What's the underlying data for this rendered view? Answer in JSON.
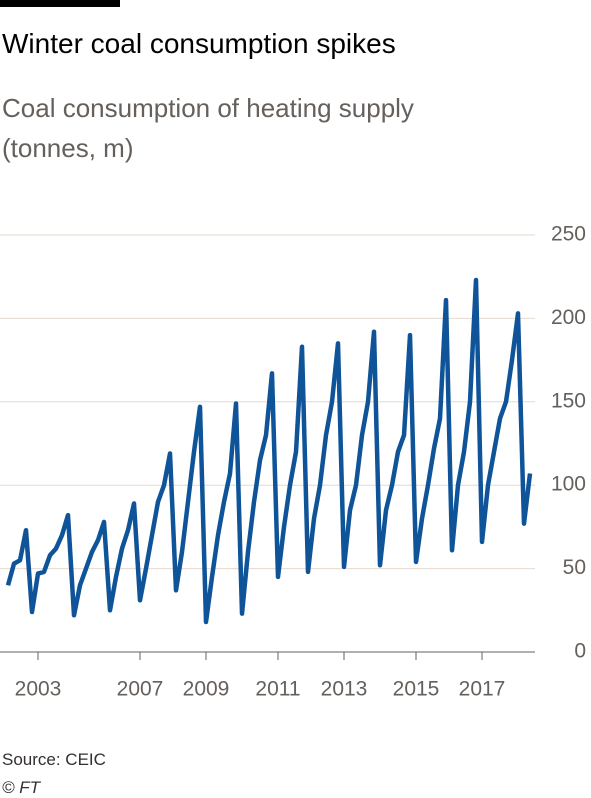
{
  "chart_data": {
    "type": "line",
    "title": "Winter coal consumption spikes",
    "subtitle": "Coal consumption of heating supply (tonnes, m)",
    "source": "Source: CEIC",
    "credit": "© FT",
    "categories": [
      null,
      null,
      null,
      null,
      null,
      "2003",
      null,
      null,
      null,
      null,
      null,
      null,
      null,
      null,
      null,
      null,
      null,
      null,
      null,
      null,
      null,
      null,
      "2007",
      null,
      null,
      null,
      null,
      null,
      null,
      null,
      null,
      null,
      null,
      "2009",
      null,
      null,
      null,
      null,
      null,
      null,
      null,
      null,
      null,
      null,
      null,
      "2011",
      null,
      null,
      null,
      null,
      null,
      null,
      null,
      null,
      null,
      null,
      "2013",
      null,
      null,
      null,
      null,
      null,
      null,
      null,
      null,
      null,
      null,
      null,
      "2015",
      null,
      null,
      null,
      null,
      null,
      null,
      null,
      null,
      null,
      null,
      "2017",
      null,
      null,
      null,
      null,
      null,
      null,
      null,
      null
    ],
    "values": [
      40,
      53,
      55,
      73,
      24,
      47,
      48,
      58,
      62,
      70,
      82,
      22,
      40,
      50,
      60,
      67,
      78,
      25,
      45,
      62,
      73,
      89,
      31,
      50,
      70,
      90,
      100,
      119,
      37,
      60,
      90,
      120,
      147,
      18,
      45,
      70,
      90,
      107,
      149,
      23,
      60,
      90,
      115,
      130,
      167,
      45,
      75,
      100,
      120,
      183,
      48,
      80,
      100,
      130,
      150,
      185,
      51,
      85,
      100,
      130,
      150,
      192,
      52,
      85,
      100,
      120,
      130,
      190,
      54,
      80,
      100,
      122,
      140,
      211,
      61,
      100,
      120,
      150,
      223,
      66,
      100,
      120,
      140,
      150,
      175,
      203,
      77,
      107
    ],
    "color": "#0f5499",
    "ylim": [
      0,
      250
    ],
    "yticks": [
      0,
      50,
      100,
      150,
      200,
      250
    ],
    "grid": true
  }
}
